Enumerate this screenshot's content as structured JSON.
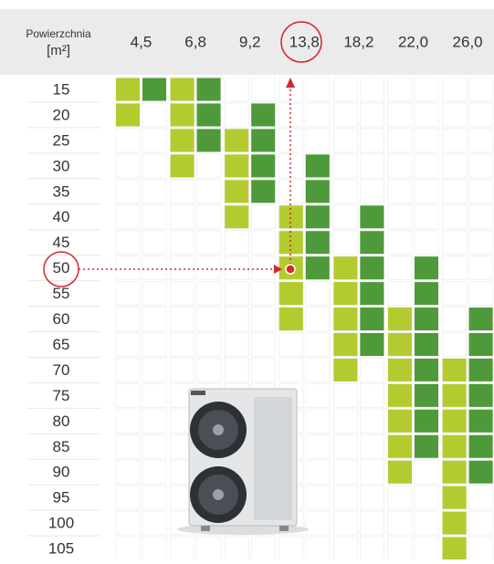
{
  "header": {
    "area_label": "Powierzchnia",
    "unit_label": "[m²]"
  },
  "rows": [
    15,
    20,
    25,
    30,
    35,
    40,
    45,
    50,
    55,
    60,
    65,
    70,
    75,
    80,
    85,
    90,
    95,
    100,
    105
  ],
  "columns": [
    {
      "label": "4,5",
      "light": [
        15,
        20
      ],
      "dark": [
        15,
        15
      ]
    },
    {
      "label": "6,8",
      "light": [
        15,
        30
      ],
      "dark": [
        15,
        25
      ]
    },
    {
      "label": "9,2",
      "light": [
        25,
        40
      ],
      "dark": [
        20,
        35
      ]
    },
    {
      "label": "13,8",
      "light": [
        40,
        60
      ],
      "dark": [
        30,
        50
      ]
    },
    {
      "label": "18,2",
      "light": [
        50,
        70
      ],
      "dark": [
        40,
        65
      ]
    },
    {
      "label": "22,0",
      "light": [
        60,
        90
      ],
      "dark": [
        50,
        85
      ]
    },
    {
      "label": "26,0",
      "light": [
        70,
        105
      ],
      "dark": [
        60,
        90
      ]
    }
  ],
  "colors": {
    "light": "#b4cb2f",
    "dark": "#4e9a3b"
  }
}
